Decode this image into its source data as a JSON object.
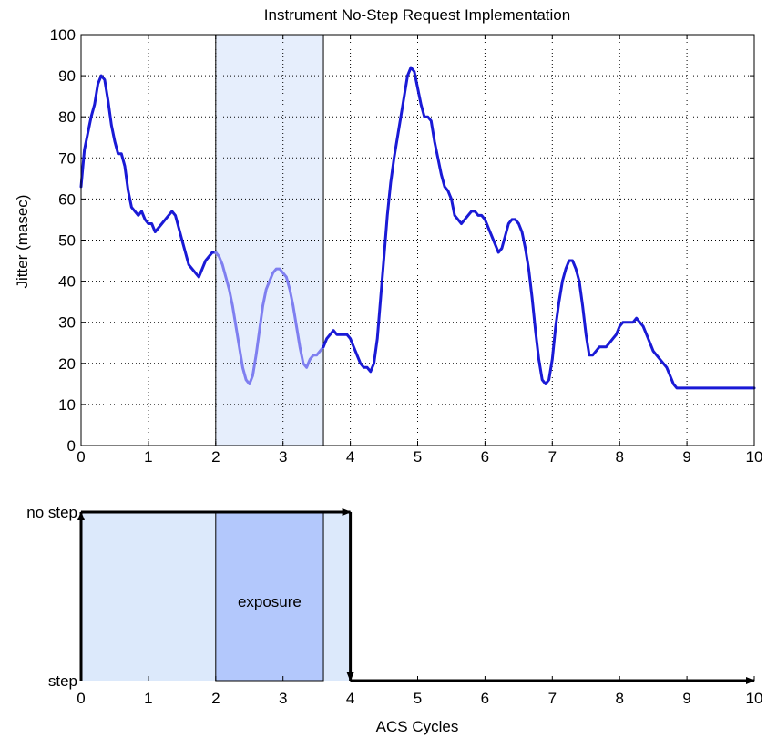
{
  "chart_data": [
    {
      "type": "line",
      "title": "Instrument No-Step Request Implementation",
      "xlabel": "",
      "ylabel": "Jitter (masec)",
      "xlim": [
        0,
        10
      ],
      "ylim": [
        0,
        100
      ],
      "xticks": [
        "0",
        "1",
        "2",
        "3",
        "4",
        "5",
        "6",
        "7",
        "8",
        "9",
        "10"
      ],
      "yticks": [
        "0",
        "10",
        "20",
        "30",
        "40",
        "50",
        "60",
        "70",
        "80",
        "90",
        "100"
      ],
      "grid": true,
      "highlight_region": {
        "x": [
          2,
          3.6
        ],
        "y": [
          0,
          100
        ]
      },
      "colors": {
        "line": "#1a1ad6",
        "line_in_region": "#7f7ff0",
        "region_fill": "#e6eefc"
      },
      "x": [
        0,
        0.05,
        0.1,
        0.15,
        0.2,
        0.25,
        0.3,
        0.35,
        0.4,
        0.45,
        0.5,
        0.55,
        0.6,
        0.65,
        0.7,
        0.75,
        0.8,
        0.85,
        0.9,
        0.95,
        1.0,
        1.05,
        1.1,
        1.15,
        1.2,
        1.25,
        1.3,
        1.35,
        1.4,
        1.45,
        1.5,
        1.55,
        1.6,
        1.65,
        1.7,
        1.75,
        1.8,
        1.85,
        1.9,
        1.95,
        2.0,
        2.05,
        2.1,
        2.15,
        2.2,
        2.25,
        2.3,
        2.35,
        2.4,
        2.45,
        2.5,
        2.55,
        2.6,
        2.65,
        2.7,
        2.75,
        2.8,
        2.85,
        2.9,
        2.95,
        3.0,
        3.05,
        3.1,
        3.15,
        3.2,
        3.25,
        3.3,
        3.35,
        3.4,
        3.45,
        3.5,
        3.55,
        3.6,
        3.65,
        3.7,
        3.75,
        3.8,
        3.85,
        3.9,
        3.95,
        4.0,
        4.05,
        4.1,
        4.15,
        4.2,
        4.25,
        4.3,
        4.35,
        4.4,
        4.45,
        4.5,
        4.55,
        4.6,
        4.65,
        4.7,
        4.75,
        4.8,
        4.85,
        4.9,
        4.95,
        5.0,
        5.05,
        5.1,
        5.15,
        5.2,
        5.25,
        5.3,
        5.35,
        5.4,
        5.45,
        5.5,
        5.55,
        5.6,
        5.65,
        5.7,
        5.75,
        5.8,
        5.85,
        5.9,
        5.95,
        6.0,
        6.05,
        6.1,
        6.15,
        6.2,
        6.25,
        6.3,
        6.35,
        6.4,
        6.45,
        6.5,
        6.55,
        6.6,
        6.65,
        6.7,
        6.75,
        6.8,
        6.85,
        6.9,
        6.95,
        7.0,
        7.05,
        7.1,
        7.15,
        7.2,
        7.25,
        7.3,
        7.35,
        7.4,
        7.45,
        7.5,
        7.55,
        7.6,
        7.65,
        7.7,
        7.75,
        7.8,
        7.85,
        7.9,
        7.95,
        8.0,
        8.05,
        8.1,
        8.15,
        8.2,
        8.25,
        8.3,
        8.35,
        8.4,
        8.45,
        8.5,
        8.55,
        8.6,
        8.65,
        8.7,
        8.75,
        8.8,
        8.85,
        8.9,
        8.95,
        9.0,
        9.05,
        9.1,
        9.15,
        9.2,
        9.25,
        9.3,
        9.35,
        9.4,
        9.45,
        9.5,
        9.55,
        9.6,
        9.65,
        9.7,
        9.75,
        9.8,
        9.85,
        9.9,
        9.95,
        10.0
      ],
      "y": [
        63,
        72,
        76,
        80,
        83,
        88,
        90,
        89,
        84,
        78,
        74,
        71,
        71,
        68,
        62,
        58,
        57,
        56,
        57,
        55,
        54,
        54,
        52,
        53,
        54,
        55,
        56,
        57,
        56,
        53,
        50,
        47,
        44,
        43,
        42,
        41,
        43,
        45,
        46,
        47,
        47,
        46,
        44,
        41,
        38,
        34,
        29,
        24,
        19,
        16,
        15,
        17,
        22,
        28,
        34,
        38,
        40,
        42,
        43,
        43,
        42,
        41,
        38,
        34,
        29,
        24,
        20,
        19,
        21,
        22,
        22,
        23,
        24,
        26,
        27,
        28,
        27,
        27,
        27,
        27,
        26,
        24,
        22,
        20,
        19,
        19,
        18,
        20,
        26,
        36,
        46,
        56,
        64,
        70,
        75,
        80,
        85,
        90,
        92,
        91,
        87,
        83,
        80,
        80,
        79,
        74,
        70,
        66,
        63,
        62,
        60,
        56,
        55,
        54,
        55,
        56,
        57,
        57,
        56,
        56,
        55,
        53,
        51,
        49,
        47,
        48,
        51,
        54,
        55,
        55,
        54,
        52,
        48,
        43,
        36,
        28,
        21,
        16,
        15,
        16,
        21,
        29,
        35,
        40,
        43,
        45,
        45,
        43,
        40,
        34,
        27,
        22,
        22,
        23,
        24,
        24,
        24,
        25,
        26,
        27,
        29,
        30,
        30,
        30,
        30,
        31,
        30,
        29,
        27,
        25,
        23,
        22,
        21,
        20,
        19,
        17,
        15,
        14,
        14,
        14,
        14,
        14,
        14,
        14,
        14,
        14,
        14,
        14,
        14,
        14,
        14,
        14,
        14,
        14,
        14,
        14,
        14,
        14,
        14,
        14,
        14
      ]
    },
    {
      "type": "step",
      "xlabel": "ACS Cycles",
      "ylabel": "",
      "xlim": [
        0,
        10
      ],
      "xticks": [
        "0",
        "1",
        "2",
        "3",
        "4",
        "5",
        "6",
        "7",
        "8",
        "9",
        "10"
      ],
      "yticks": [
        "step",
        "no step"
      ],
      "exposure_label": "exposure",
      "no_step_region": {
        "x": [
          0,
          4
        ]
      },
      "exposure_region": {
        "x": [
          2,
          3.6
        ]
      },
      "colors": {
        "no_step_fill": "#dce9fb",
        "exposure_fill": "#b3c8fc",
        "line": "#000000"
      },
      "x": [
        0,
        0,
        4,
        4,
        10
      ],
      "y": [
        "step",
        "no step",
        "no step",
        "step",
        "step"
      ]
    }
  ]
}
